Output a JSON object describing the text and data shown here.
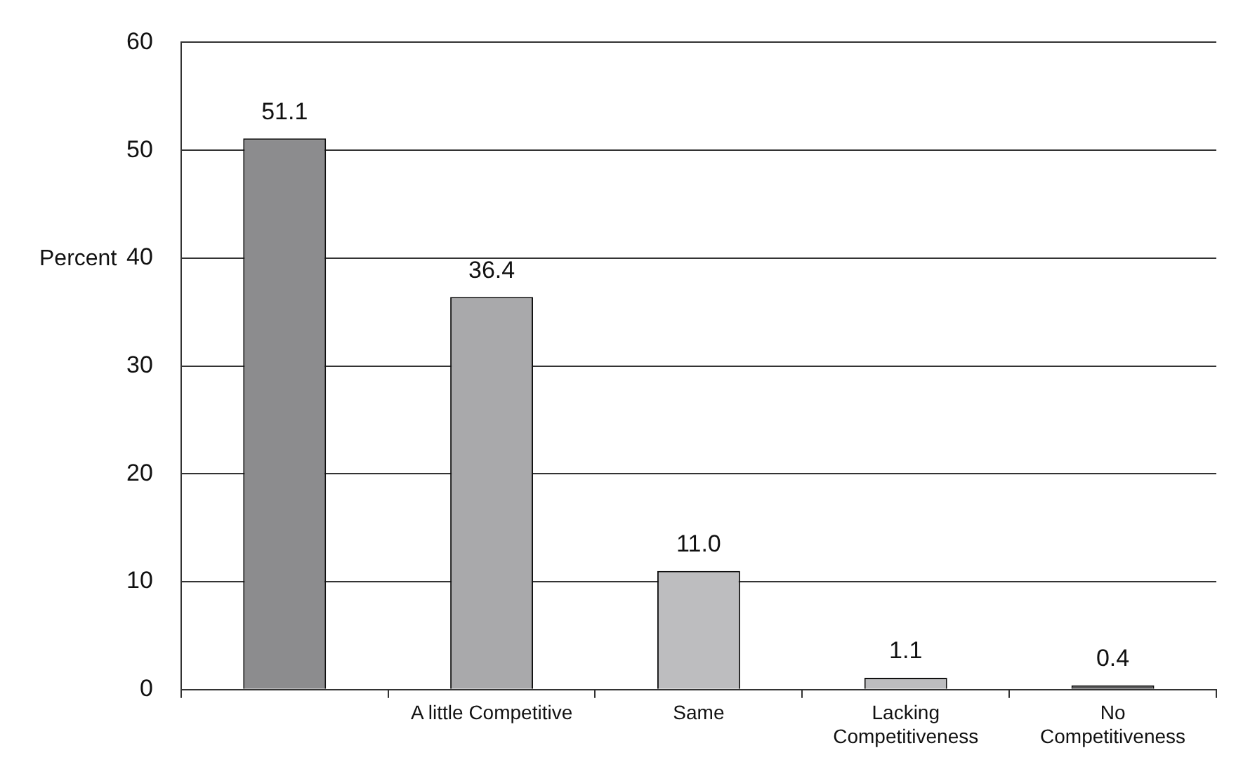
{
  "chart_data": {
    "type": "bar",
    "ylabel": "Percent",
    "categories": [
      null,
      "A little Competitive",
      "Same",
      "Lacking Competitiveness",
      "No Competitiveness"
    ],
    "values": [
      51.1,
      36.4,
      11.0,
      1.1,
      0.4
    ],
    "value_labels": [
      "51.1",
      "36.4",
      "11.0",
      "1.1",
      "0.4"
    ],
    "colors": [
      "#8c8c8e",
      "#a9a9ab",
      "#bdbdbf",
      "#bdbdbf",
      "#58585a"
    ],
    "ylim": [
      0,
      60
    ],
    "yticks": [
      0,
      10,
      20,
      30,
      40,
      50,
      60
    ],
    "grid": "y",
    "legend": false
  }
}
